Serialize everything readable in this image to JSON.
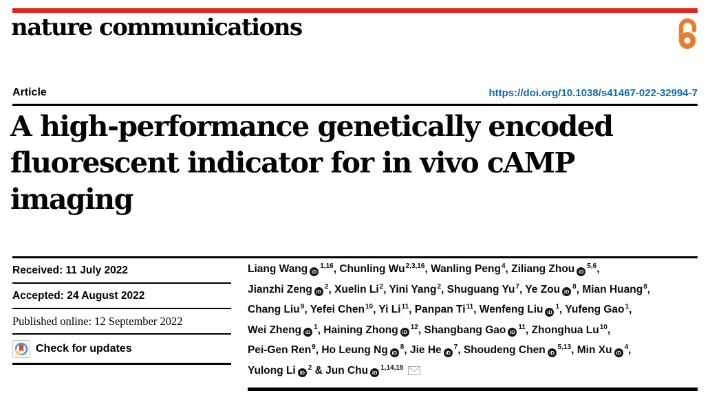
{
  "masthead": {
    "brand": "nature communications"
  },
  "article_bar": {
    "type_label": "Article",
    "doi": "https://doi.org/10.1038/s41467-022-32994-7"
  },
  "title": "A high-performance genetically encoded fluorescent indicator for in vivo cAMP imaging",
  "title_lines": [
    "A high-performance genetically encoded",
    "fluorescent indicator for in vivo cAMP",
    "imaging"
  ],
  "dates": {
    "received": "Received: 11 July 2022",
    "accepted": "Accepted: 24 August 2022",
    "published": "Published online: 12 September 2022"
  },
  "check_for_updates_label": "Check for updates",
  "authors": [
    {
      "name": "Liang Wang",
      "orcid": true,
      "sup": "1,16"
    },
    {
      "name": "Chunling Wu",
      "orcid": false,
      "sup": "2,3,16"
    },
    {
      "name": "Wanling Peng",
      "orcid": false,
      "sup": "4"
    },
    {
      "name": "Ziliang Zhou",
      "orcid": true,
      "sup": "5,6",
      "line_end": true
    },
    {
      "name": "Jianzhi Zeng",
      "orcid": true,
      "sup": "2"
    },
    {
      "name": "Xuelin Li",
      "orcid": false,
      "sup": "2"
    },
    {
      "name": "Yini Yang",
      "orcid": false,
      "sup": "2"
    },
    {
      "name": "Shuguang Yu",
      "orcid": false,
      "sup": "7"
    },
    {
      "name": "Ye Zou",
      "orcid": true,
      "sup": "8"
    },
    {
      "name": "Mian Huang",
      "orcid": false,
      "sup": "8",
      "line_end": true
    },
    {
      "name": "Chang Liu",
      "orcid": false,
      "sup": "9"
    },
    {
      "name": "Yefei Chen",
      "orcid": false,
      "sup": "10"
    },
    {
      "name": "Yi Li",
      "orcid": false,
      "sup": "11"
    },
    {
      "name": "Panpan Ti",
      "orcid": false,
      "sup": "11"
    },
    {
      "name": "Wenfeng Liu",
      "orcid": true,
      "sup": "1"
    },
    {
      "name": "Yufeng Gao",
      "orcid": false,
      "sup": "1",
      "line_end": true
    },
    {
      "name": "Wei Zheng",
      "orcid": true,
      "sup": "1"
    },
    {
      "name": "Haining Zhong",
      "orcid": true,
      "sup": "12"
    },
    {
      "name": "Shangbang Gao",
      "orcid": true,
      "sup": "11"
    },
    {
      "name": "Zhonghua Lu",
      "orcid": false,
      "sup": "10",
      "line_end": true
    },
    {
      "name": "Pei-Gen Ren",
      "orcid": false,
      "sup": "9"
    },
    {
      "name": "Ho Leung Ng",
      "orcid": true,
      "sup": "8"
    },
    {
      "name": "Jie He",
      "orcid": true,
      "sup": "7"
    },
    {
      "name": "Shoudeng Chen",
      "orcid": true,
      "sup": "5,13"
    },
    {
      "name": "Min Xu",
      "orcid": true,
      "sup": "4",
      "line_end": true
    },
    {
      "name": "Yulong Li",
      "orcid": true,
      "sup": "2"
    },
    {
      "name": "Jun Chu",
      "orcid": true,
      "sup": "1,14,15",
      "corresponding": true
    }
  ],
  "icons": {
    "open_access": "open-access-padlock",
    "crossmark": "check-for-updates-crossmark",
    "orcid": "orcid-id",
    "envelope": "corresponding-author-email"
  },
  "colors": {
    "brand_red": "#e3231d",
    "link_blue": "#0c6ab2",
    "open_access_orange": "#e87d2d",
    "crossmark_blue": "#4e95cd",
    "crossmark_yellow": "#f3c74c",
    "crossmark_red": "#e2403a",
    "text_black": "#0a0a0a"
  }
}
